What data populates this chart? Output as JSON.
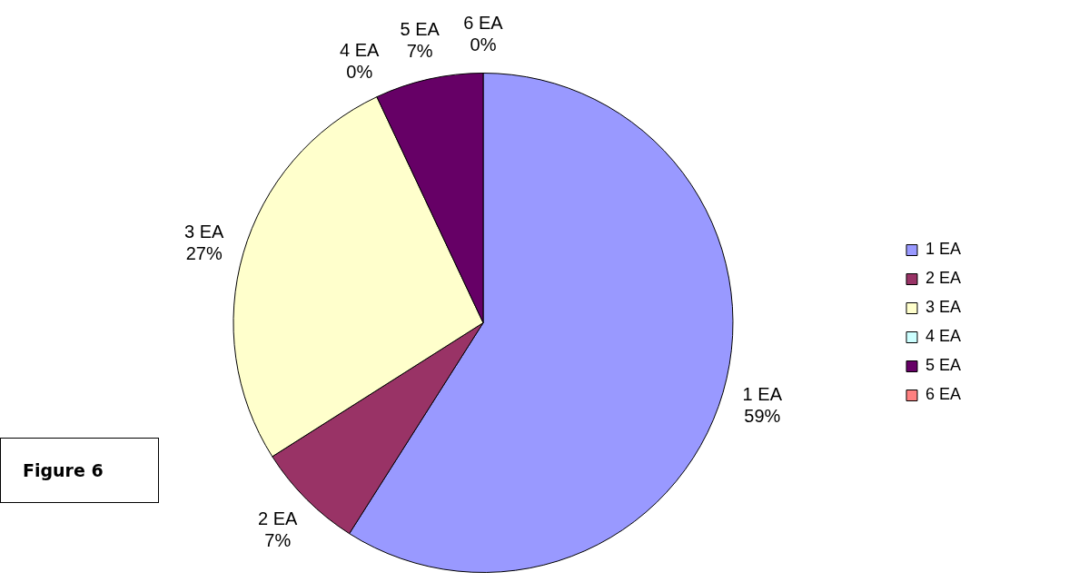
{
  "chart_data": {
    "type": "pie",
    "categories": [
      "1 EA",
      "2 EA",
      "3 EA",
      "4 EA",
      "5 EA",
      "6 EA"
    ],
    "values": [
      59,
      7,
      27,
      0,
      7,
      0
    ],
    "colors": [
      "#9999ff",
      "#993366",
      "#ffffcc",
      "#ccffff",
      "#660066",
      "#ff8080"
    ],
    "value_labels": [
      "59%",
      "7%",
      "27%",
      "0%",
      "7%",
      "0%"
    ],
    "legend": "right",
    "annotations": [
      "Figure 6"
    ]
  }
}
